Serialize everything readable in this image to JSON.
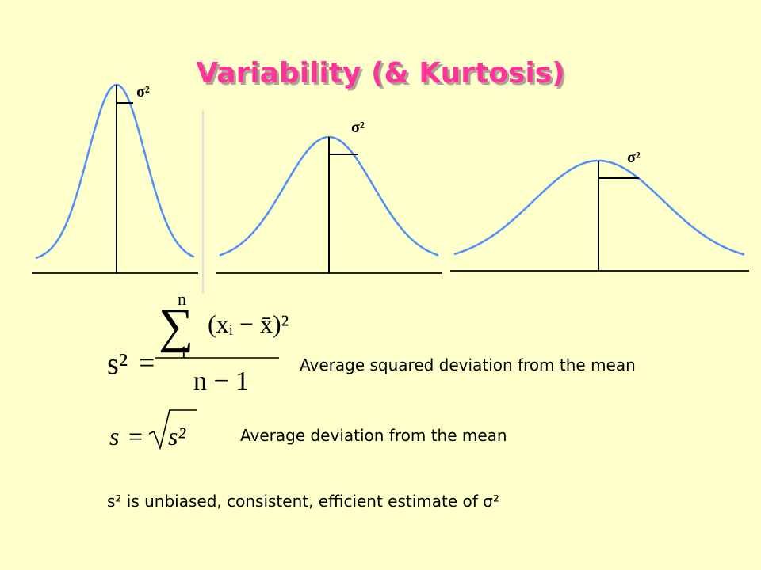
{
  "header": {
    "title": "Variability (& Kurtosis)"
  },
  "curves": [
    {
      "label": "σ²"
    },
    {
      "label": "σ²"
    },
    {
      "label": "σ²"
    }
  ],
  "formulas": [
    {
      "lhs": "s²",
      "equals": "=",
      "symbol": "∑",
      "sum_upper": "n",
      "sum_lower": "1",
      "numerator": "(xᵢ − x̄)²",
      "denominator": "n − 1",
      "description": "Average squared deviation from the mean"
    },
    {
      "lhs": "s",
      "equals": "=",
      "radicand": "s²",
      "description": "Average deviation from the mean"
    }
  ],
  "footer": {
    "text": "s² is unbiased, consistent, efficient estimate of σ²"
  }
}
